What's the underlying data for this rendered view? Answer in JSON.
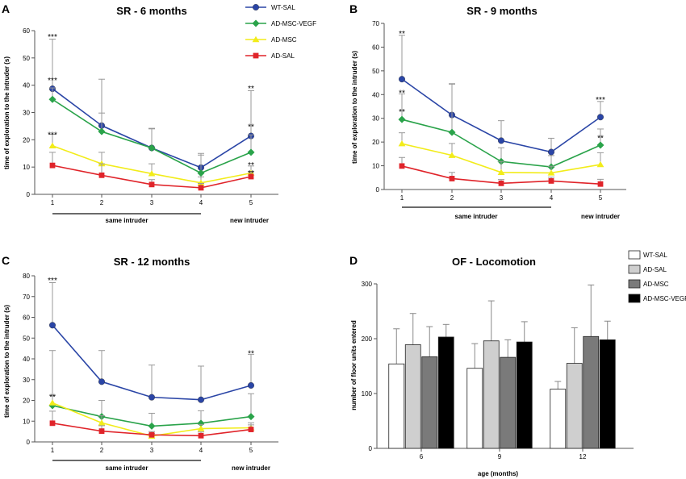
{
  "legend_lines": [
    {
      "label": "WT-SAL",
      "color": "#2a45a6"
    },
    {
      "label": "AD-MSC-VEGF",
      "color": "#2aa34a"
    },
    {
      "label": "AD-MSC",
      "color": "#f2ec1a"
    },
    {
      "label": "AD-SAL",
      "color": "#e0242a"
    }
  ],
  "legend_bars": [
    {
      "label": "WT-SAL",
      "color": "#ffffff"
    },
    {
      "label": "AD-SAL",
      "color": "#cfcfcf"
    },
    {
      "label": "AD-MSC",
      "color": "#7a7a7a"
    },
    {
      "label": "AD-MSC-VEGF",
      "color": "#000000"
    }
  ],
  "chart_data": [
    {
      "panel": "A",
      "type": "line",
      "title": "SR - 6 months",
      "ylabel": "time of exploration to the intruder (s)",
      "ylim": [
        0,
        60
      ],
      "yticks": [
        0,
        10,
        20,
        30,
        40,
        50,
        60
      ],
      "x": [
        "1",
        "2",
        "3",
        "4",
        "5"
      ],
      "group_label": "same intruder",
      "extra_label": "new intruder",
      "series": [
        {
          "name": "WT-SAL",
          "values": [
            38.7,
            25.2,
            17.0,
            9.8,
            21.4
          ],
          "err": [
            18.2,
            17.0,
            7.2,
            5.2,
            16.6
          ]
        },
        {
          "name": "AD-MSC-VEGF",
          "values": [
            34.8,
            23.0,
            17.0,
            7.8,
            15.4
          ],
          "err": [
            4.2,
            6.8,
            7.0,
            6.6,
            6.4
          ]
        },
        {
          "name": "AD-MSC",
          "values": [
            17.8,
            11.2,
            7.6,
            4.2,
            7.8
          ],
          "err": [
            4.2,
            4.2,
            3.6,
            2.2,
            2.6
          ]
        },
        {
          "name": "AD-SAL",
          "values": [
            10.6,
            7.0,
            3.6,
            2.4,
            6.5
          ],
          "err": [
            4.8,
            4.2,
            1.8,
            1.6,
            1.8
          ]
        }
      ],
      "annotations": [
        {
          "text": "***",
          "x": "1",
          "y": 58
        },
        {
          "text": "***",
          "x": "1",
          "y": 42
        },
        {
          "text": "***",
          "x": "1",
          "y": 22
        },
        {
          "text": "**",
          "x": "5",
          "y": 39
        },
        {
          "text": "**",
          "x": "5",
          "y": 25
        },
        {
          "text": "**",
          "x": "5",
          "y": 11
        },
        {
          "text": "**",
          "x": "5",
          "y": 8
        }
      ]
    },
    {
      "panel": "B",
      "type": "line",
      "title": "SR - 9 months",
      "ylabel": "time of exploration to the intruder (s)",
      "ylim": [
        0,
        70
      ],
      "yticks": [
        0,
        10,
        20,
        30,
        40,
        50,
        60,
        70
      ],
      "x": [
        "1",
        "2",
        "3",
        "4",
        "5"
      ],
      "group_label": "same intruder",
      "extra_label": "new intruder",
      "series": [
        {
          "name": "WT-SAL",
          "values": [
            46.5,
            31.4,
            20.6,
            15.8,
            30.5
          ],
          "err": [
            18.5,
            13.0,
            8.4,
            5.8,
            6.6
          ]
        },
        {
          "name": "AD-MSC-VEGF",
          "values": [
            29.5,
            24.1,
            11.8,
            9.5,
            18.7
          ],
          "err": [
            10.8,
            20.5,
            5.8,
            4.8,
            6.8
          ]
        },
        {
          "name": "AD-MSC",
          "values": [
            19.3,
            14.4,
            7.2,
            7.0,
            10.5
          ],
          "err": [
            4.6,
            5.0,
            4.6,
            2.8,
            5.0
          ]
        },
        {
          "name": "AD-SAL",
          "values": [
            9.9,
            4.6,
            2.6,
            3.6,
            2.3
          ],
          "err": [
            3.6,
            2.6,
            1.6,
            1.6,
            2.0
          ]
        }
      ],
      "annotations": [
        {
          "text": "**",
          "x": "1",
          "y": 66
        },
        {
          "text": "**",
          "x": "1",
          "y": 41
        },
        {
          "text": "**",
          "x": "1",
          "y": 33
        },
        {
          "text": "***",
          "x": "5",
          "y": 38
        },
        {
          "text": "**",
          "x": "5",
          "y": 22
        }
      ]
    },
    {
      "panel": "C",
      "type": "line",
      "title": "SR - 12 months",
      "ylabel": "time of exploration to the intruder (s)",
      "ylim": [
        0,
        80
      ],
      "yticks": [
        0,
        10,
        20,
        30,
        40,
        50,
        60,
        70,
        80
      ],
      "x": [
        "1",
        "2",
        "3",
        "4",
        "5"
      ],
      "group_label": "same intruder",
      "extra_label": "new intruder",
      "series": [
        {
          "name": "WT-SAL",
          "values": [
            56.2,
            29.0,
            21.5,
            20.3,
            27.2
          ],
          "err": [
            20.5,
            15.0,
            15.5,
            16.2,
            15.0
          ]
        },
        {
          "name": "AD-MSC-VEGF",
          "values": [
            17.5,
            12.2,
            7.6,
            9.0,
            12.2
          ],
          "err": [
            26.5,
            7.8,
            6.2,
            6.0,
            11.0
          ]
        },
        {
          "name": "AD-MSC",
          "values": [
            18.8,
            9.2,
            2.8,
            6.4,
            6.8
          ],
          "err": [
            3.6,
            3.4,
            1.2,
            2.0,
            2.4
          ]
        },
        {
          "name": "AD-SAL",
          "values": [
            9.0,
            5.2,
            3.4,
            3.0,
            6.0
          ],
          "err": [
            5.8,
            2.6,
            1.6,
            1.8,
            2.2
          ]
        }
      ],
      "annotations": [
        {
          "text": "***",
          "x": "1",
          "y": 78
        },
        {
          "text": "**",
          "x": "1",
          "y": 22
        },
        {
          "text": "**",
          "x": "5",
          "y": 43
        }
      ]
    },
    {
      "panel": "D",
      "type": "bar",
      "title": "OF - Locomotion",
      "ylabel": "number of floor units entered",
      "xlabel": "age (months)",
      "ylim": [
        0,
        300
      ],
      "yticks": [
        0,
        100,
        200,
        300
      ],
      "categories": [
        "6",
        "9",
        "12"
      ],
      "series": [
        {
          "name": "WT-SAL",
          "values": [
            154,
            146,
            108
          ],
          "err": [
            64,
            45,
            14
          ]
        },
        {
          "name": "AD-SAL",
          "values": [
            189,
            196,
            155
          ],
          "err": [
            57,
            73,
            65
          ]
        },
        {
          "name": "AD-MSC",
          "values": [
            167,
            166,
            204
          ],
          "err": [
            55,
            32,
            94
          ]
        },
        {
          "name": "AD-MSC-VEGF",
          "values": [
            203,
            194,
            198
          ],
          "err": [
            23,
            37,
            34
          ]
        }
      ]
    }
  ]
}
